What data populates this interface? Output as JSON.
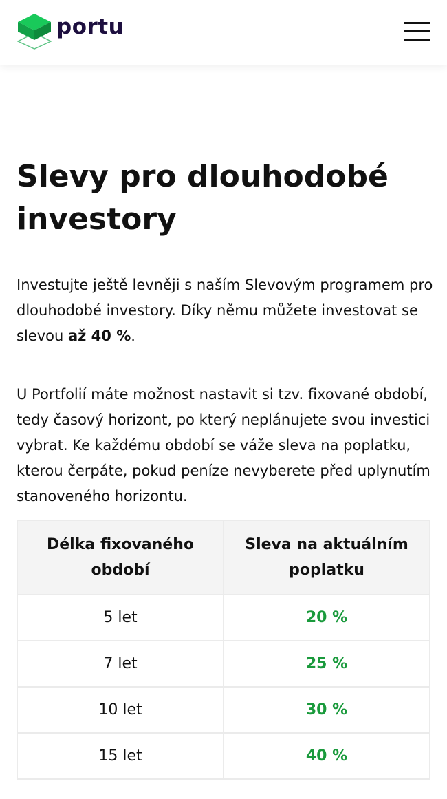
{
  "header": {
    "logo_text": "portu",
    "logo_icon": "green-cube-icon",
    "menu_icon": "hamburger-menu-icon"
  },
  "colors": {
    "accent": "#1a9a3c",
    "logo_text": "#1d0f3f"
  },
  "main": {
    "title": "Slevy pro dlouhodobé investory",
    "intro_prefix": "Investujte ještě levněji s naším Slevovým programem pro dlouhodobé investory. Díky němu můžete investovat se slevou ",
    "intro_bold": "až 40 %",
    "intro_suffix": ".",
    "paragraph2": "U Portfolií máte možnost nastavit si tzv. fixované období, tedy časový horizont, po který neplánujete svou investici vybrat. Ke každému období se váže sleva na poplatku, kterou čerpáte, pokud peníze nevyberete před uplynutím stanoveného horizontu.",
    "table": {
      "headers": [
        "Délka fixovaného období",
        "Sleva na aktuálním poplatku"
      ],
      "rows": [
        {
          "period": "5 let",
          "discount": "20 %"
        },
        {
          "period": "7 let",
          "discount": "25 %"
        },
        {
          "period": "10 let",
          "discount": "30 %"
        },
        {
          "period": "15 let",
          "discount": "40 %"
        }
      ]
    }
  }
}
